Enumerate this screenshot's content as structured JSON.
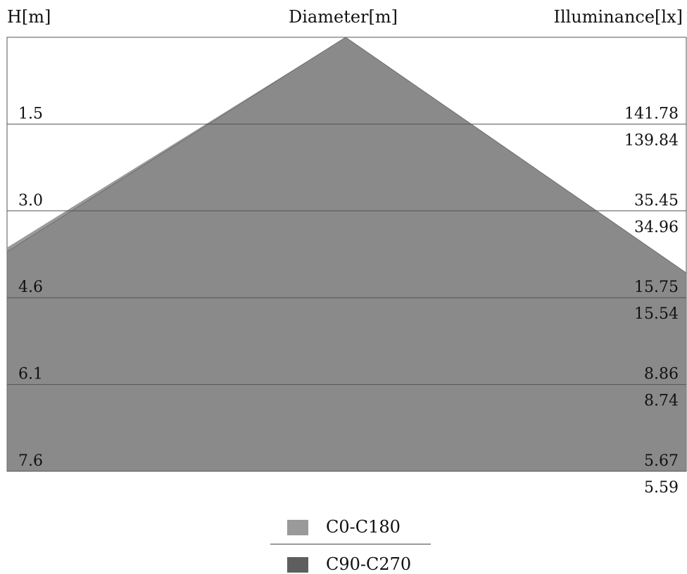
{
  "chart_data": {
    "type": "area",
    "header": {
      "left": "H[m]",
      "center": "Diameter[m]",
      "right": "Illuminance[lx]"
    },
    "heights": [
      "1.5",
      "3.0",
      "4.6",
      "6.1",
      "7.6"
    ],
    "ylim": [
      0,
      7.6
    ],
    "series": [
      {
        "name": "C0-C180",
        "color": "#9a9a9a",
        "illuminance": [
          "141.78",
          "35.45",
          "15.75",
          "8.86",
          "5.67"
        ]
      },
      {
        "name": "C90-C270",
        "color": "#6e6e6e",
        "illuminance": [
          "139.84",
          "34.96",
          "15.54",
          "8.74",
          "5.59"
        ]
      }
    ],
    "grid": true,
    "legend_position": "bottom-center"
  }
}
